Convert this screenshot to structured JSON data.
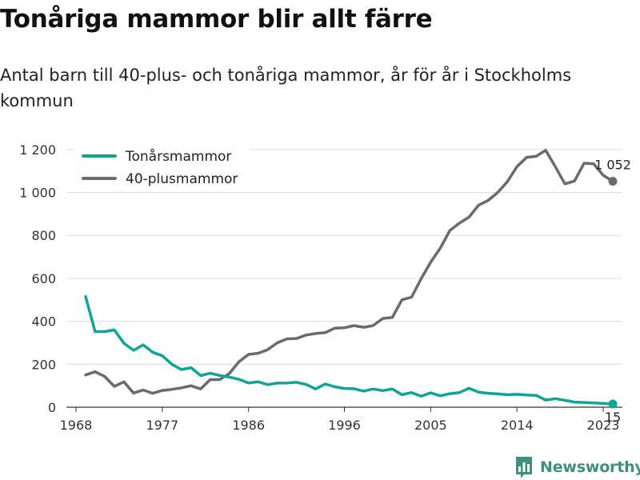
{
  "title": "Tonåriga mammor blir allt färre",
  "subtitle": "Antal barn till 40-plus- och tonåriga mammor, år för år i Stockholms kommun",
  "brand": {
    "name": "Newsworthy",
    "icon": "bar-chart-logo-icon"
  },
  "colors": {
    "teen": "#0fa596",
    "plus40": "#6a6a70",
    "grid": "#dddddd",
    "brand": "#3f8f80"
  },
  "chart_data": {
    "type": "line",
    "xlim": [
      1967,
      2025
    ],
    "ylim": [
      0,
      1300
    ],
    "x_ticks": [
      1968,
      1977,
      1986,
      1996,
      2005,
      2014,
      2023
    ],
    "x_tick_labels": [
      "1968",
      "1977",
      "1986",
      "1996",
      "2005",
      "2014",
      "2023"
    ],
    "y_ticks": [
      0,
      200,
      400,
      600,
      800,
      1000,
      1200
    ],
    "y_tick_labels": [
      "0",
      "200",
      "400",
      "600",
      "800",
      "1 000",
      "1 200"
    ],
    "grid": true,
    "legend_position": "top-left",
    "x": [
      1969,
      1970,
      1971,
      1972,
      1973,
      1974,
      1975,
      1976,
      1977,
      1978,
      1979,
      1980,
      1981,
      1982,
      1983,
      1984,
      1985,
      1986,
      1987,
      1988,
      1989,
      1990,
      1991,
      1992,
      1993,
      1994,
      1995,
      1996,
      1997,
      1998,
      1999,
      2000,
      2001,
      2002,
      2003,
      2004,
      2005,
      2006,
      2007,
      2008,
      2009,
      2010,
      2011,
      2012,
      2013,
      2014,
      2015,
      2016,
      2017,
      2018,
      2019,
      2020,
      2021,
      2022,
      2023,
      2024
    ],
    "series": [
      {
        "name": "Tonårsmammor",
        "color_key": "teen",
        "values": [
          515,
          352,
          352,
          360,
          298,
          265,
          290,
          256,
          240,
          200,
          175,
          184,
          147,
          158,
          148,
          140,
          130,
          113,
          118,
          105,
          112,
          113,
          116,
          106,
          85,
          108,
          95,
          87,
          86,
          75,
          85,
          77,
          85,
          58,
          68,
          51,
          67,
          53,
          63,
          68,
          88,
          70,
          65,
          62,
          58,
          60,
          57,
          55,
          33,
          40,
          32,
          24,
          22,
          20,
          18,
          15
        ],
        "end_label": "15"
      },
      {
        "name": "40-plusmammor",
        "color_key": "plus40",
        "values": [
          150,
          165,
          143,
          97,
          118,
          66,
          80,
          65,
          78,
          83,
          90,
          100,
          85,
          128,
          129,
          157,
          212,
          246,
          251,
          268,
          300,
          318,
          320,
          336,
          343,
          347,
          368,
          370,
          380,
          372,
          380,
          413,
          418,
          500,
          512,
          598,
          675,
          740,
          823,
          857,
          885,
          941,
          963,
          1000,
          1050,
          1120,
          1163,
          1168,
          1196,
          1120,
          1040,
          1053,
          1136,
          1133,
          1080,
          1052
        ],
        "end_label": "1 052"
      }
    ]
  }
}
